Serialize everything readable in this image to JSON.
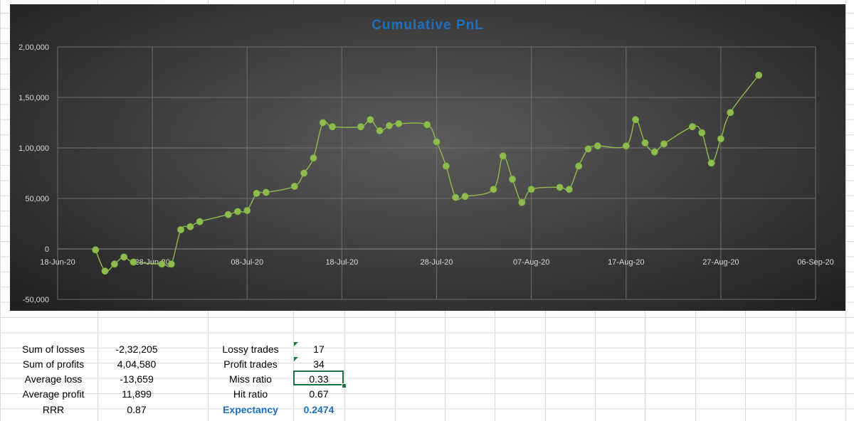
{
  "chart_data": {
    "type": "line",
    "title": "Cumulative PnL",
    "xlabel": "",
    "ylabel": "",
    "x_tick_labels": [
      "18-Jun-20",
      "28-Jun-20",
      "08-Jul-20",
      "18-Jul-20",
      "28-Jul-20",
      "07-Aug-20",
      "17-Aug-20",
      "27-Aug-20",
      "06-Sep-20"
    ],
    "y_tick_labels": [
      "-50,000",
      "0",
      "50,000",
      "1,00,000",
      "1,50,000",
      "2,00,000"
    ],
    "xlim": [
      "2020-06-18",
      "2020-09-06"
    ],
    "ylim": [
      -50000,
      200000
    ],
    "grid": true,
    "legend": "none",
    "series_color": "#8fbc4f",
    "series": [
      {
        "x": [
          "2020-06-22",
          "2020-06-23",
          "2020-06-24",
          "2020-06-25",
          "2020-06-26",
          "2020-06-29",
          "2020-06-30",
          "2020-07-01",
          "2020-07-02",
          "2020-07-03",
          "2020-07-06",
          "2020-07-07",
          "2020-07-08",
          "2020-07-09",
          "2020-07-10",
          "2020-07-13",
          "2020-07-14",
          "2020-07-15",
          "2020-07-16",
          "2020-07-17",
          "2020-07-20",
          "2020-07-21",
          "2020-07-22",
          "2020-07-23",
          "2020-07-24",
          "2020-07-27",
          "2020-07-28",
          "2020-07-29",
          "2020-07-30",
          "2020-07-31",
          "2020-08-03",
          "2020-08-04",
          "2020-08-05",
          "2020-08-06",
          "2020-08-07",
          "2020-08-10",
          "2020-08-11",
          "2020-08-12",
          "2020-08-13",
          "2020-08-14",
          "2020-08-17",
          "2020-08-18",
          "2020-08-19",
          "2020-08-20",
          "2020-08-21",
          "2020-08-24",
          "2020-08-25",
          "2020-08-26",
          "2020-08-27",
          "2020-08-28",
          "2020-08-31"
        ],
        "y": [
          -1000,
          -22000,
          -15000,
          -8000,
          -13000,
          -15000,
          -15000,
          19000,
          22000,
          27000,
          34000,
          37000,
          38000,
          55000,
          56000,
          62000,
          75000,
          90000,
          125000,
          121000,
          121000,
          128000,
          117000,
          122000,
          124000,
          123000,
          106000,
          82000,
          51000,
          52000,
          59000,
          92000,
          69000,
          46000,
          59000,
          61000,
          59000,
          82000,
          99000,
          102000,
          102000,
          128000,
          105000,
          96000,
          104000,
          121000,
          115000,
          85000,
          109000,
          135000,
          172000
        ]
      }
    ]
  },
  "stats": {
    "rows": [
      {
        "label1": "Sum of losses",
        "value1": "-2,32,205",
        "label2": "Lossy trades",
        "value2": "17"
      },
      {
        "label1": "Sum of profits",
        "value1": "4,04,580",
        "label2": "Profit trades",
        "value2": "34"
      },
      {
        "label1": "Average loss",
        "value1": "-13,659",
        "label2": "Miss ratio",
        "value2": "0.33"
      },
      {
        "label1": "Average profit",
        "value1": "11,899",
        "label2": "Hit ratio",
        "value2": "0.67"
      },
      {
        "label1": "RRR",
        "value1": "0.87",
        "label2": "Expectancy",
        "value2": "0.2474"
      }
    ]
  }
}
